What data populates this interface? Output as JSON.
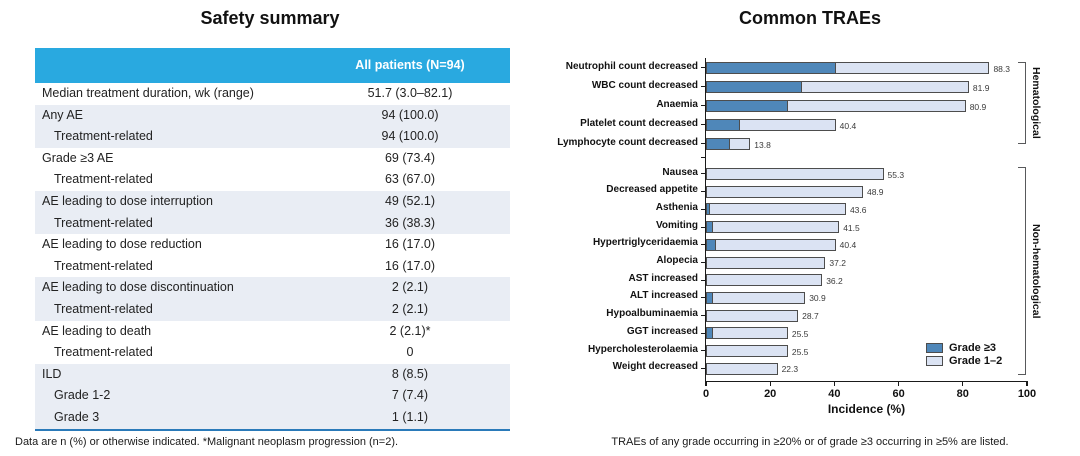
{
  "left_panel": {
    "title": "Safety summary",
    "table": {
      "column_header": "All patients (N=94)",
      "rows": [
        {
          "label": "Median treatment duration, wk (range)",
          "value": "51.7 (3.0–82.1)",
          "indent": false,
          "shaded": false
        },
        {
          "label": "Any AE",
          "value": "94 (100.0)",
          "indent": false,
          "shaded": true
        },
        {
          "label": "Treatment-related",
          "value": "94 (100.0)",
          "indent": true,
          "shaded": true
        },
        {
          "label": "Grade ≥3 AE",
          "value": "69 (73.4)",
          "indent": false,
          "shaded": false
        },
        {
          "label": "Treatment-related",
          "value": "63 (67.0)",
          "indent": true,
          "shaded": false
        },
        {
          "label": "AE leading to dose interruption",
          "value": "49 (52.1)",
          "indent": false,
          "shaded": true
        },
        {
          "label": "Treatment-related",
          "value": "36 (38.3)",
          "indent": true,
          "shaded": true
        },
        {
          "label": "AE leading to dose reduction",
          "value": "16 (17.0)",
          "indent": false,
          "shaded": false
        },
        {
          "label": "Treatment-related",
          "value": "16 (17.0)",
          "indent": true,
          "shaded": false
        },
        {
          "label": "AE leading to dose discontinuation",
          "value": "2 (2.1)",
          "indent": false,
          "shaded": true
        },
        {
          "label": "Treatment-related",
          "value": "2 (2.1)",
          "indent": true,
          "shaded": true
        },
        {
          "label": "AE leading to death",
          "value": "2 (2.1)*",
          "indent": false,
          "shaded": false
        },
        {
          "label": "Treatment-related",
          "value": "0",
          "indent": true,
          "shaded": false
        },
        {
          "label": "ILD",
          "value": "8 (8.5)",
          "indent": false,
          "shaded": true
        },
        {
          "label": "Grade 1-2",
          "value": "7 (7.4)",
          "indent": true,
          "shaded": true
        },
        {
          "label": "Grade 3",
          "value": "1 (1.1)",
          "indent": true,
          "shaded": true
        }
      ]
    },
    "footnote": "Data are n (%) or otherwise indicated. *Malignant neoplasm progression (n=2)."
  },
  "right_panel": {
    "title": "Common TRAEs",
    "footnote": "TRAEs of any grade occurring in ≥20% or of grade ≥3 occurring in ≥5% are listed."
  },
  "chart_data": {
    "type": "bar",
    "orientation": "horizontal",
    "stacked": true,
    "title": "Common TRAEs",
    "xlabel": "Incidence (%)",
    "xlim": [
      0,
      100
    ],
    "xticks": [
      0,
      20,
      40,
      60,
      80,
      100
    ],
    "legend": [
      {
        "name": "Grade ≥3",
        "color": "#4f87b9"
      },
      {
        "name": "Grade 1–2",
        "color": "#dbe3f3"
      }
    ],
    "legend_position": "lower right",
    "value_labels": "total shown at bar end",
    "groups": [
      {
        "name": "Hematological",
        "bars": [
          {
            "label": "Neutrophil count decreased",
            "total": 88.3,
            "grade3plus": 40.4
          },
          {
            "label": "WBC count decreased",
            "total": 81.9,
            "grade3plus": 29.8
          },
          {
            "label": "Anaemia",
            "total": 80.9,
            "grade3plus": 25.5
          },
          {
            "label": "Platelet count decreased",
            "total": 40.4,
            "grade3plus": 10.6
          },
          {
            "label": "Lymphocyte count decreased",
            "total": 13.8,
            "grade3plus": 7.4
          }
        ]
      },
      {
        "name": "Non-hematological",
        "bars": [
          {
            "label": "Nausea",
            "total": 55.3,
            "grade3plus": 0
          },
          {
            "label": "Decreased appetite",
            "total": 48.9,
            "grade3plus": 0
          },
          {
            "label": "Asthenia",
            "total": 43.6,
            "grade3plus": 1.1
          },
          {
            "label": "Vomiting",
            "total": 41.5,
            "grade3plus": 2.1
          },
          {
            "label": "Hypertriglyceridaemia",
            "total": 40.4,
            "grade3plus": 3.2
          },
          {
            "label": "Alopecia",
            "total": 37.2,
            "grade3plus": 0
          },
          {
            "label": "AST increased",
            "total": 36.2,
            "grade3plus": 0
          },
          {
            "label": "ALT increased",
            "total": 30.9,
            "grade3plus": 2.1
          },
          {
            "label": "Hypoalbuminaemia",
            "total": 28.7,
            "grade3plus": 0
          },
          {
            "label": "GGT increased",
            "total": 25.5,
            "grade3plus": 2.1
          },
          {
            "label": "Hypercholesterolaemia",
            "total": 25.5,
            "grade3plus": 0
          },
          {
            "label": "Weight decreased",
            "total": 22.3,
            "grade3plus": 0
          }
        ]
      }
    ]
  },
  "colors": {
    "table_header_bg": "#29a9e0",
    "table_header_text": "#ffffff",
    "table_stripe": "#e9edf4",
    "table_bottom_border": "#2a7ab9",
    "grade3_bar": "#4f87b9",
    "grade12_bar": "#dbe3f3",
    "bar_border": "#4d4d4d"
  }
}
